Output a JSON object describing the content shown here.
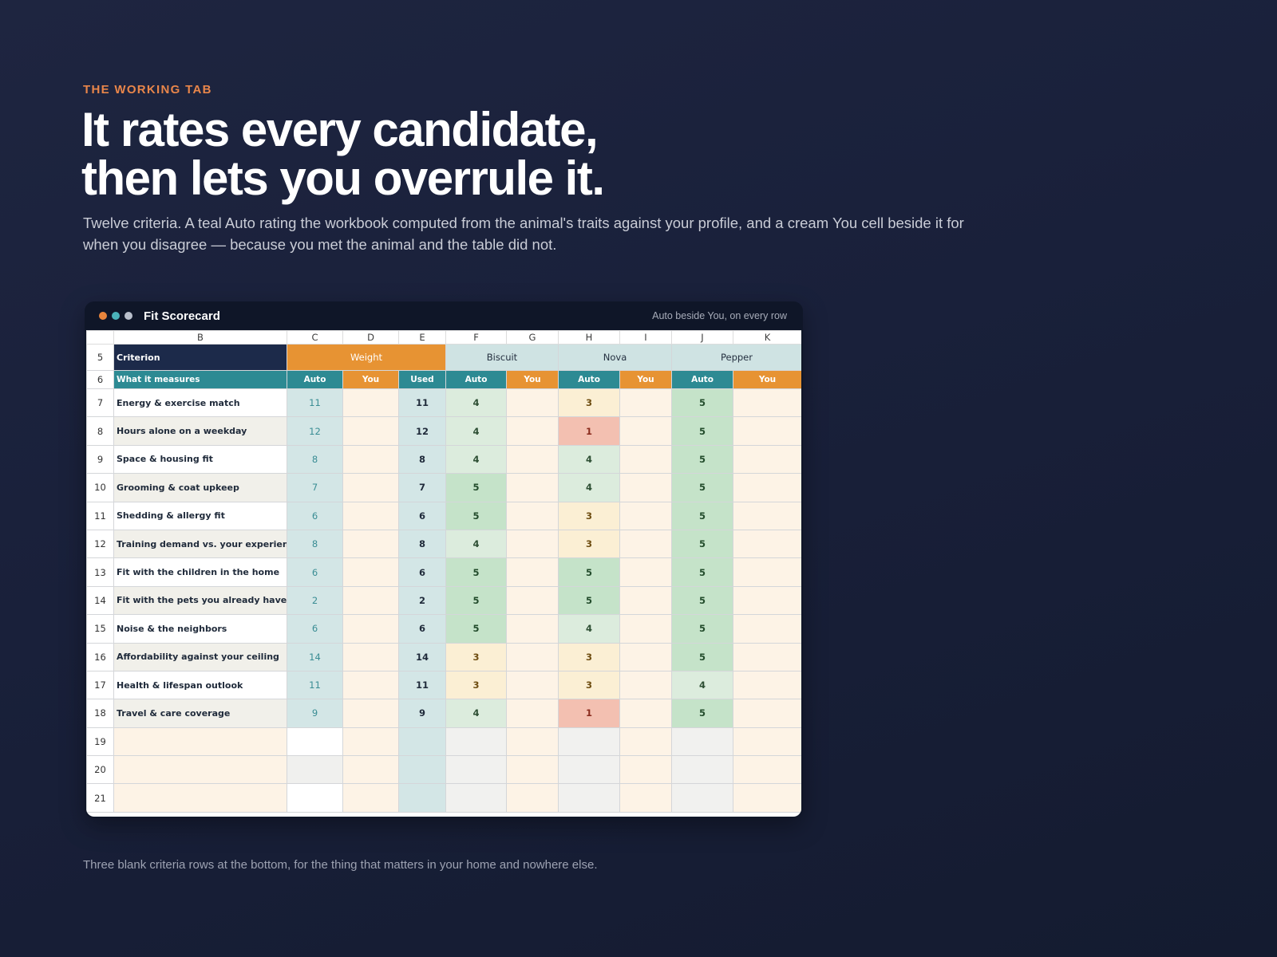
{
  "eyebrow": "THE WORKING TAB",
  "headline": {
    "line1": "It rates every candidate,",
    "line2": "then lets you overrule it."
  },
  "lede": "Twelve criteria. A teal Auto rating the workbook computed from the animal's traits against your profile, and a cream You cell beside it for when you disagree — because you met the animal and the table did not.",
  "caption": "Three blank criteria rows at the bottom, for the thing that matters in your home and nowhere else.",
  "window": {
    "title": "Fit Scorecard",
    "right_note": "Auto beside You, on every row",
    "dot_colors": [
      "#e9853c",
      "#4bb3ba",
      "#b9bfcb"
    ]
  },
  "sheet": {
    "columns": [
      "B",
      "C",
      "D",
      "E",
      "F",
      "G",
      "H",
      "I",
      "J",
      "K"
    ],
    "row5": {
      "num": "5",
      "criterion": "Criterion",
      "weight": "Weight",
      "candidates": [
        "Biscuit",
        "Nova",
        "Pepper"
      ]
    },
    "row6": {
      "num": "6",
      "what": "What it measures",
      "auto": "Auto",
      "you": "You",
      "used": "Used"
    },
    "rows": [
      {
        "num": "7",
        "label": "Energy & exercise match",
        "auto": "11",
        "used": "11",
        "scores": [
          "4",
          "3",
          "5"
        ]
      },
      {
        "num": "8",
        "label": "Hours alone on a weekday",
        "auto": "12",
        "used": "12",
        "scores": [
          "4",
          "1",
          "5"
        ]
      },
      {
        "num": "9",
        "label": "Space & housing fit",
        "auto": "8",
        "used": "8",
        "scores": [
          "4",
          "4",
          "5"
        ]
      },
      {
        "num": "10",
        "label": "Grooming & coat upkeep",
        "auto": "7",
        "used": "7",
        "scores": [
          "5",
          "4",
          "5"
        ]
      },
      {
        "num": "11",
        "label": "Shedding & allergy fit",
        "auto": "6",
        "used": "6",
        "scores": [
          "5",
          "3",
          "5"
        ]
      },
      {
        "num": "12",
        "label": "Training demand vs. your experience",
        "auto": "8",
        "used": "8",
        "scores": [
          "4",
          "3",
          "5"
        ]
      },
      {
        "num": "13",
        "label": "Fit with the children in the home",
        "auto": "6",
        "used": "6",
        "scores": [
          "5",
          "5",
          "5"
        ]
      },
      {
        "num": "14",
        "label": "Fit with the pets you already have",
        "auto": "2",
        "used": "2",
        "scores": [
          "5",
          "5",
          "5"
        ]
      },
      {
        "num": "15",
        "label": "Noise & the neighbors",
        "auto": "6",
        "used": "6",
        "scores": [
          "5",
          "4",
          "5"
        ]
      },
      {
        "num": "16",
        "label": "Affordability against your ceiling",
        "auto": "14",
        "used": "14",
        "scores": [
          "3",
          "3",
          "5"
        ]
      },
      {
        "num": "17",
        "label": "Health & lifespan outlook",
        "auto": "11",
        "used": "11",
        "scores": [
          "3",
          "3",
          "4"
        ]
      },
      {
        "num": "18",
        "label": "Travel & care coverage",
        "auto": "9",
        "used": "9",
        "scores": [
          "4",
          "1",
          "5"
        ]
      }
    ],
    "blank_rows": [
      "19",
      "20",
      "21"
    ],
    "score_colors": {
      "5": "#c5e3c9",
      "4": "#dcecdd",
      "3": "#fbefd4",
      "1": "#f3c0b1"
    }
  }
}
